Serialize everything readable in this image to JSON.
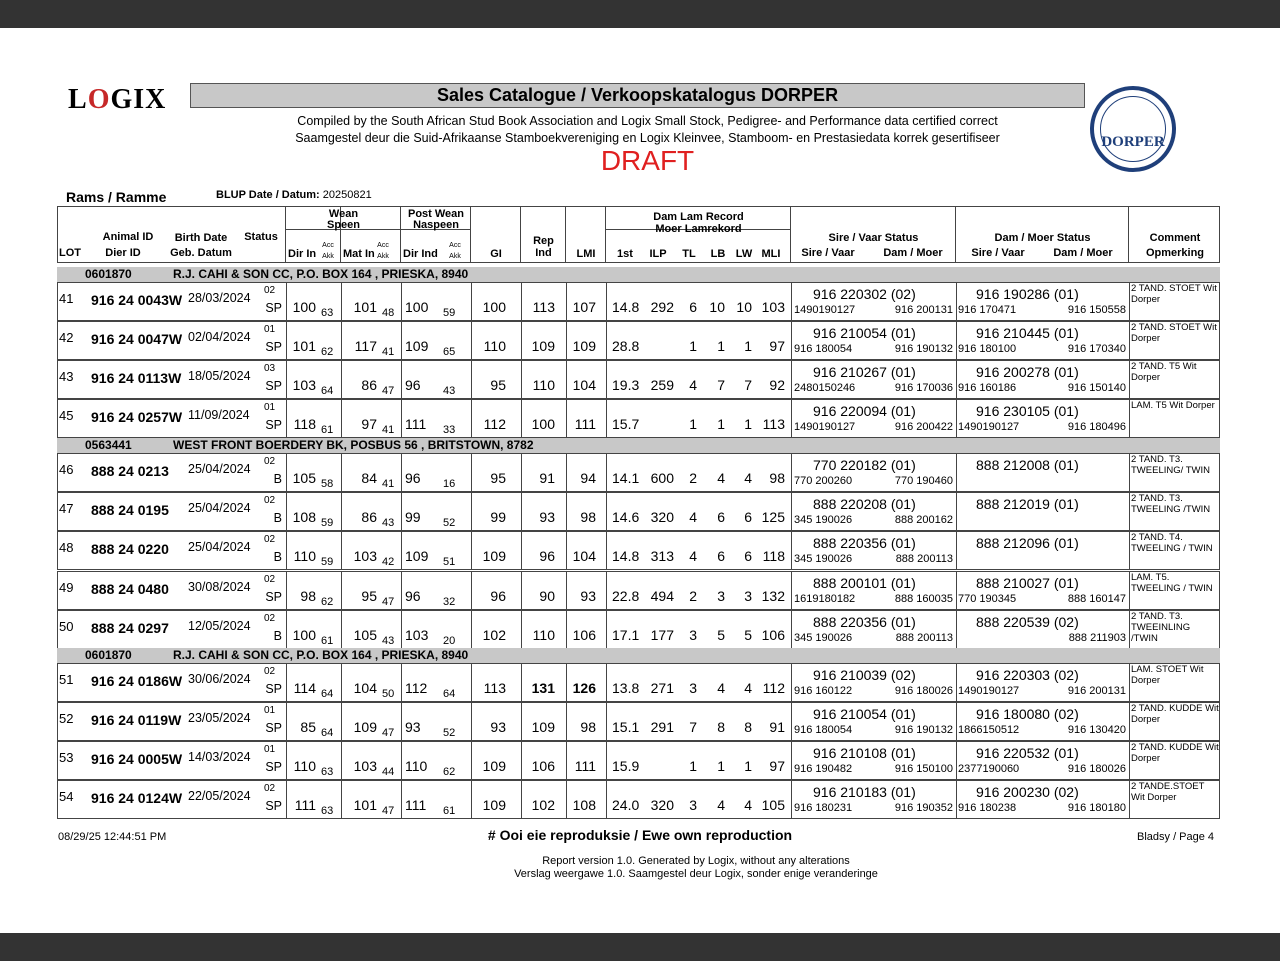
{
  "logo": "LOGIX",
  "title": "Sales Catalogue / Verkoopskatalogus DORPER",
  "subtitle_en": "Compiled by the South African Stud Book Association and Logix Small Stock, Pedigree- and Performance data certified correct",
  "subtitle_af": "Saamgestel deur die Suid-Afrikaanse Stamboekvereniging en Logix Kleinvee, Stamboom- en Prestasiedata korrek gesertifiseer",
  "draft": "DRAFT",
  "seal_text": "DORPER",
  "section": "Rams / Ramme",
  "blup_label": "BLUP Date / Datum:",
  "blup_date": "20250821",
  "headers": {
    "lot": "LOT",
    "animal_id": "Animal ID",
    "dier_id": "Dier ID",
    "birth": "Birth Date",
    "geb": "Geb. Datum",
    "status": "Status",
    "wean": "Wean",
    "speen": "Speen",
    "postwean": "Post Wean",
    "naspeen": "Naspeen",
    "dir_in": "Dir In",
    "mat_in": "Mat In",
    "dir_ind": "Dir Ind",
    "acc": "Acc",
    "akk": "Akk",
    "gi": "GI",
    "rep": "Rep",
    "ind": "Ind",
    "lmi": "LMI",
    "damlam": "Dam Lam Record",
    "moerlam": "Moer Lamrekord",
    "first": "1st",
    "ilp": "ILP",
    "tl": "TL",
    "lb": "LB",
    "lw": "LW",
    "mli": "MLI",
    "sire_status": "Sire / Vaar Status",
    "dam_status": "Dam / Moer Status",
    "sire_vaar": "Sire / Vaar",
    "dam_moer": "Dam / Moer",
    "comment": "Comment",
    "opmerking": "Opmerking"
  },
  "groups": [
    {
      "code": "0601870",
      "breeder": "R.J. CAHI & SON CC, P.O. BOX 164 , PRIESKA, 8940",
      "rows": [
        [
          "41",
          "916 24 0043W",
          "28/03/2024",
          "02",
          "SP",
          "100",
          "63",
          "101",
          "48",
          "100",
          "59",
          "100",
          "113",
          "107",
          "14.8",
          "292",
          "6",
          "10",
          "10",
          "103",
          "916 220302 (02)",
          "1490190127",
          "916 200131",
          "916 190286 (01)",
          "916 170471",
          "916 150558",
          "2 TAND. STOET Wit Dorper"
        ],
        [
          "42",
          "916 24 0047W",
          "02/04/2024",
          "01",
          "SP",
          "101",
          "62",
          "117",
          "41",
          "109",
          "65",
          "110",
          "109",
          "109",
          "28.8",
          "",
          "1",
          "1",
          "1",
          "97",
          "916 210054 (01)",
          "916 180054",
          "916 190132",
          "916 210445 (01)",
          "916 180100",
          "916 170340",
          "2 TAND. STOET Wit Dorper"
        ],
        [
          "43",
          "916 24 0113W",
          "18/05/2024",
          "03",
          "SP",
          "103",
          "64",
          "86",
          "47",
          "96",
          "43",
          "95",
          "110",
          "104",
          "19.3",
          "259",
          "4",
          "7",
          "7",
          "92",
          "916 210267 (01)",
          "2480150246",
          "916 170036",
          "916 200278 (01)",
          "916 160186",
          "916 150140",
          "2 TAND. T5 Wit Dorper"
        ],
        [
          "45",
          "916 24 0257W",
          "11/09/2024",
          "01",
          "SP",
          "118",
          "61",
          "97",
          "41",
          "111",
          "33",
          "112",
          "100",
          "111",
          "15.7",
          "",
          "1",
          "1",
          "1",
          "113",
          "916 220094 (01)",
          "1490190127",
          "916 200422",
          "916 230105 (01)",
          "1490190127",
          "916 180496",
          "LAM. T5 Wit Dorper"
        ]
      ]
    },
    {
      "code": "0563441",
      "breeder": "WEST FRONT BOERDERY BK, POSBUS 56 , BRITSTOWN, 8782",
      "rows": [
        [
          "46",
          "888 24 0213",
          "25/04/2024",
          "02",
          "B",
          "105",
          "58",
          "84",
          "41",
          "96",
          "16",
          "95",
          "91",
          "94",
          "14.1",
          "600",
          "2",
          "4",
          "4",
          "98",
          "770 220182 (01)",
          "770 200260",
          "770 190460",
          "888 212008 (01)",
          "",
          "",
          "2 TAND. T3. TWEELING/ TWIN"
        ],
        [
          "47",
          "888 24 0195",
          "25/04/2024",
          "02",
          "B",
          "108",
          "59",
          "86",
          "43",
          "99",
          "52",
          "99",
          "93",
          "98",
          "14.6",
          "320",
          "4",
          "6",
          "6",
          "125",
          "888 220208 (01)",
          "345 190026",
          "888 200162",
          "888 212019 (01)",
          "",
          "",
          "2 TAND. T3. TWEELING /TWIN"
        ],
        [
          "48",
          "888 24 0220",
          "25/04/2024",
          "02",
          "B",
          "110",
          "59",
          "103",
          "42",
          "109",
          "51",
          "109",
          "96",
          "104",
          "14.8",
          "313",
          "4",
          "6",
          "6",
          "118",
          "888 220356 (01)",
          "345 190026",
          "888 200113",
          "888 212096 (01)",
          "",
          "",
          "2 TAND. T4. TWEELING / TWIN"
        ],
        [
          "49",
          "888 24 0480",
          "30/08/2024",
          "02",
          "SP",
          "98",
          "62",
          "95",
          "47",
          "96",
          "32",
          "96",
          "90",
          "93",
          "22.8",
          "494",
          "2",
          "3",
          "3",
          "132",
          "888 200101 (01)",
          "1619180182",
          "888 160035",
          "888 210027 (01)",
          "770 190345",
          "888 160147",
          "LAM. T5. TWEELING / TWIN"
        ],
        [
          "50",
          "888 24 0297",
          "12/05/2024",
          "02",
          "B",
          "100",
          "61",
          "105",
          "43",
          "103",
          "20",
          "102",
          "110",
          "106",
          "17.1",
          "177",
          "3",
          "5",
          "5",
          "106",
          "888 220356 (01)",
          "345 190026",
          "888 200113",
          "888 220539 (02)",
          "",
          "888 211903",
          "2 TAND. T3. TWEEINLING /TWIN"
        ]
      ]
    },
    {
      "code": "0601870",
      "breeder": "R.J. CAHI & SON CC, P.O. BOX 164 , PRIESKA, 8940",
      "rows": [
        [
          "51",
          "916 24 0186W",
          "30/06/2024",
          "02",
          "SP",
          "114",
          "64",
          "104",
          "50",
          "112",
          "64",
          "113",
          "131",
          "126",
          "13.8",
          "271",
          "3",
          "4",
          "4",
          "112",
          "916 210039 (02)",
          "916 160122",
          "916 180026",
          "916 220303 (02)",
          "1490190127",
          "916 200131",
          "LAM. STOET Wit Dorper"
        ],
        [
          "52",
          "916 24 0119W",
          "23/05/2024",
          "01",
          "SP",
          "85",
          "64",
          "109",
          "47",
          "93",
          "52",
          "93",
          "109",
          "98",
          "15.1",
          "291",
          "7",
          "8",
          "8",
          "91",
          "916 210054 (01)",
          "916 180054",
          "916 190132",
          "916 180080 (02)",
          "1866150512",
          "916 130420",
          "2 TAND. KUDDE Wit Dorper"
        ],
        [
          "53",
          "916 24 0005W",
          "14/03/2024",
          "01",
          "SP",
          "110",
          "63",
          "103",
          "44",
          "110",
          "62",
          "109",
          "106",
          "111",
          "15.9",
          "",
          "1",
          "1",
          "1",
          "97",
          "916 210108 (01)",
          "916 190482",
          "916 150100",
          "916 220532 (01)",
          "2377190060",
          "916 180026",
          "2 TAND. KUDDE Wit Dorper"
        ],
        [
          "54",
          "916 24 0124W",
          "22/05/2024",
          "02",
          "SP",
          "111",
          "63",
          "101",
          "47",
          "111",
          "61",
          "109",
          "102",
          "108",
          "24.0",
          "320",
          "3",
          "4",
          "4",
          "105",
          "916 210183 (01)",
          "916 180231",
          "916 190352",
          "916 200230 (02)",
          "916 180238",
          "916 180180",
          "2 TANDE.STOET Wit Dorper"
        ]
      ]
    }
  ],
  "bold_cells": {
    "lot_51": [
      "rep",
      "lmi"
    ]
  },
  "footer": {
    "timestamp": "08/29/25 12:44:51 PM",
    "note": "# Ooi eie reproduksie / Ewe own reproduction",
    "page": "Bladsy / Page 4",
    "report_en": "Report version  1.0. Generated by Logix, without any alterations",
    "report_af": "Verslag weergawe 1.0. Saamgestel deur Logix, sonder enige veranderinge"
  },
  "colors": {
    "draft": "#e02020",
    "band": "#c8c8c8",
    "seal": "#1f3f7a"
  }
}
